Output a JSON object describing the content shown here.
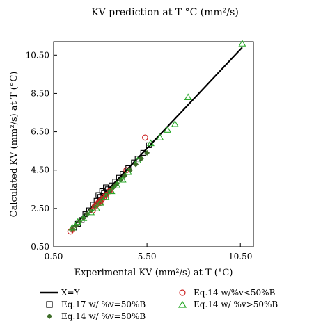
{
  "chart_data": {
    "type": "scatter",
    "title": "KV prediction at T °C (mm²/s)",
    "xlabel": "Experimental KV (mm²/s) at T (°C)",
    "ylabel": "Calculated KV (mm²/s) at T (°C)",
    "xlim": [
      0.5,
      11.2
    ],
    "ylim": [
      0.5,
      11.2
    ],
    "xticks": [
      "0.50",
      "5.50",
      "10.50"
    ],
    "xtick_values": [
      0.5,
      5.5,
      10.5
    ],
    "yticks": [
      "0.50",
      "2.50",
      "4.50",
      "6.50",
      "8.50",
      "10.50"
    ],
    "ytick_values": [
      0.5,
      2.5,
      4.5,
      6.5,
      8.5,
      10.5
    ],
    "grid": false,
    "legend_position": "bottom",
    "reference_line": {
      "name": "X=Y",
      "x": [
        1.5,
        10.6
      ],
      "y": [
        1.5,
        10.9
      ],
      "color": "#000000"
    },
    "series": [
      {
        "name": "Eq.17 w/ %v=50%B",
        "marker": "square-open",
        "color": "#000000",
        "x": [
          1.6,
          1.8,
          2.0,
          2.2,
          2.4,
          2.6,
          2.8,
          3.0,
          3.2,
          3.4,
          3.6,
          3.8,
          4.0,
          4.2,
          4.5,
          4.8,
          5.0,
          5.3,
          5.6,
          2.9,
          3.1,
          3.3
        ],
        "y": [
          1.5,
          1.7,
          1.9,
          2.2,
          2.4,
          2.7,
          2.9,
          3.1,
          3.3,
          3.5,
          3.7,
          3.9,
          4.1,
          4.3,
          4.6,
          4.9,
          5.1,
          5.4,
          5.8,
          3.2,
          3.4,
          3.6
        ]
      },
      {
        "name": "Eq.14 w/ %v=50%B",
        "marker": "diamond-filled",
        "color": "#3f6e2a",
        "x": [
          1.5,
          1.7,
          1.9,
          2.1,
          2.3,
          2.5,
          2.7,
          2.9,
          3.1,
          3.3,
          3.5,
          3.7,
          3.9,
          4.1,
          4.3,
          4.6,
          4.9,
          5.2,
          5.5,
          3.0,
          3.4,
          3.8
        ],
        "y": [
          1.4,
          1.6,
          1.8,
          2.0,
          2.2,
          2.4,
          2.6,
          2.8,
          3.0,
          3.2,
          3.4,
          3.6,
          3.8,
          4.0,
          4.2,
          4.5,
          4.8,
          5.1,
          5.4,
          2.9,
          3.3,
          3.7
        ]
      },
      {
        "name": "Eq.14 w/%v<50%B",
        "marker": "circle-open",
        "color": "#cc2222",
        "x": [
          1.4,
          1.5,
          2.6,
          2.8,
          2.9,
          3.0,
          3.1,
          3.2,
          3.3,
          3.5,
          4.4,
          5.4,
          2.7,
          3.0
        ],
        "y": [
          1.3,
          1.4,
          2.4,
          2.7,
          2.8,
          2.9,
          3.0,
          3.1,
          3.2,
          3.4,
          4.5,
          6.2,
          2.6,
          2.8
        ]
      },
      {
        "name": "Eq.14 w/ %v>50%B",
        "marker": "triangle-open",
        "color": "#2aa82a",
        "x": [
          1.5,
          1.8,
          2.1,
          2.5,
          2.8,
          3.0,
          3.3,
          3.6,
          3.9,
          4.2,
          4.5,
          5.0,
          5.7,
          6.2,
          6.6,
          7.0,
          7.7,
          10.6
        ],
        "y": [
          1.5,
          1.8,
          2.0,
          2.3,
          2.5,
          2.8,
          3.1,
          3.4,
          3.7,
          4.0,
          4.4,
          5.0,
          5.9,
          6.2,
          6.6,
          6.9,
          8.3,
          11.1
        ]
      }
    ]
  }
}
